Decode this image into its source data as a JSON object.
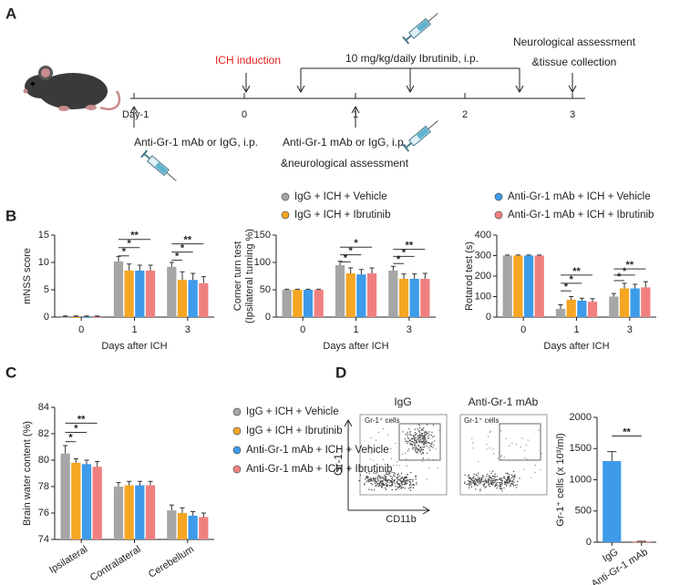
{
  "panels": [
    "A",
    "B",
    "C",
    "D"
  ],
  "timeline": {
    "days": [
      "Day-1",
      "0",
      "1",
      "2",
      "3"
    ],
    "ich": "ICH induction",
    "drug": "10 mg/kg/daily Ibrutinib, i.p.",
    "end": [
      "Neurological assessment",
      "&tissue collection"
    ],
    "first_injection": "Anti-Gr-1 mAb or IgG, i.p.",
    "second_injection": [
      "Anti-Gr-1 mAb or IgG, i.p.",
      "&neurological assessment"
    ]
  },
  "flow": {
    "titles": [
      "IgG",
      "Anti-Gr-1 mAb"
    ],
    "gate": "Gr-1⁺ cells",
    "ylabel": "Gr-1",
    "xlabel": "CD11b"
  },
  "chart_data": [
    {
      "type": "bar",
      "ylabel": "mNSS score",
      "xlabel": "Days after ICH",
      "categories": [
        "0",
        "1",
        "3"
      ],
      "ylim": [
        0,
        15
      ],
      "yticks": [
        0,
        5,
        10,
        15
      ],
      "series": [
        {
          "color": "#a6a6a6",
          "values": [
            0,
            10.2,
            9.2
          ],
          "errors": [
            0.2,
            0.9,
            0.8
          ]
        },
        {
          "color": "#f5a623",
          "values": [
            0,
            8.5,
            6.8
          ],
          "errors": [
            0.2,
            1.2,
            1.5
          ]
        },
        {
          "color": "#3d9be9",
          "values": [
            0,
            8.5,
            6.8
          ],
          "errors": [
            0.2,
            1.0,
            1.2
          ]
        },
        {
          "color": "#f08080",
          "values": [
            0,
            8.5,
            6.2
          ],
          "errors": [
            0.2,
            1.0,
            1.2
          ]
        }
      ],
      "annotations": [
        "**",
        "*",
        "*",
        "**",
        "*",
        "*"
      ]
    },
    {
      "type": "bar",
      "ylabel": [
        "Corner turn test",
        "(Ipsilateral turning %)"
      ],
      "xlabel": "Days after ICH",
      "categories": [
        "0",
        "1",
        "3"
      ],
      "ylim": [
        0,
        150
      ],
      "yticks": [
        0,
        50,
        100,
        150
      ],
      "series": [
        {
          "name": "IgG + ICH + Vehicle",
          "color": "#a6a6a6",
          "values": [
            50,
            95,
            85
          ],
          "errors": [
            1,
            7,
            8
          ]
        },
        {
          "name": "IgG + ICH + Ibrutinib",
          "color": "#f5a623",
          "values": [
            50,
            80,
            70
          ],
          "errors": [
            1,
            10,
            9
          ]
        },
        {
          "name": "Anti-Gr-1 mAb + ICH + Vehicle",
          "color": "#3d9be9",
          "values": [
            50,
            78,
            70
          ],
          "errors": [
            1,
            9,
            9
          ]
        },
        {
          "name": "Anti-Gr-1 mAb + ICH + Ibrutinib",
          "color": "#f08080",
          "values": [
            50,
            80,
            70
          ],
          "errors": [
            1,
            10,
            10
          ]
        }
      ],
      "annotations": [
        "*",
        "*",
        "*",
        "**",
        "*",
        "*"
      ]
    },
    {
      "type": "bar",
      "ylabel": "Rotarod test (s)",
      "xlabel": "Days after ICH",
      "categories": [
        "0",
        "1",
        "3"
      ],
      "ylim": [
        0,
        400
      ],
      "yticks": [
        0,
        100,
        200,
        300,
        400
      ],
      "series": [
        {
          "color": "#a6a6a6",
          "values": [
            300,
            40,
            100
          ],
          "errors": [
            3,
            20,
            15
          ]
        },
        {
          "color": "#f5a623",
          "values": [
            300,
            85,
            140
          ],
          "errors": [
            3,
            15,
            25
          ]
        },
        {
          "color": "#3d9be9",
          "values": [
            300,
            80,
            140
          ],
          "errors": [
            3,
            12,
            20
          ]
        },
        {
          "color": "#f08080",
          "values": [
            300,
            75,
            145
          ],
          "errors": [
            3,
            15,
            28
          ]
        }
      ],
      "annotations": [
        "**",
        "*",
        "*",
        "**",
        "*",
        "*"
      ]
    },
    {
      "type": "bar",
      "ylabel": "Brain water content (%)",
      "categories": [
        "Ipsilateral",
        "Contralateral",
        "Cerebellum"
      ],
      "ylim": [
        74,
        84
      ],
      "yticks": [
        74,
        76,
        78,
        80,
        82,
        84
      ],
      "series": [
        {
          "name": "IgG + ICH + Vehicle",
          "color": "#a6a6a6",
          "values": [
            80.5,
            78.0,
            76.2
          ],
          "errors": [
            0.6,
            0.3,
            0.4
          ]
        },
        {
          "name": "IgG + ICH + Ibrutinib",
          "color": "#f5a623",
          "values": [
            79.8,
            78.1,
            76.0
          ],
          "errors": [
            0.3,
            0.3,
            0.4
          ]
        },
        {
          "name": "Anti-Gr-1 mAb + ICH + Vehicle",
          "color": "#3d9be9",
          "values": [
            79.7,
            78.1,
            75.8
          ],
          "errors": [
            0.3,
            0.3,
            0.3
          ]
        },
        {
          "name": "Anti-Gr-1 mAb + ICH + Ibrutinib",
          "color": "#f08080",
          "values": [
            79.5,
            78.1,
            75.7
          ],
          "errors": [
            0.4,
            0.3,
            0.3
          ]
        }
      ],
      "annotations": [
        "**",
        "*",
        "*"
      ]
    },
    {
      "type": "bar",
      "ylabel": "Gr-1⁺ cells (x 10³/ml)",
      "categories": [
        "IgG",
        "Anti-Gr-1 mAb"
      ],
      "ylim": [
        0,
        2000
      ],
      "yticks": [
        0,
        500,
        1000,
        1500,
        2000
      ],
      "values": [
        1300,
        10
      ],
      "errors": [
        150,
        5
      ],
      "colors": [
        "#3d9be9",
        "#f08080"
      ],
      "annotations": [
        "**"
      ]
    }
  ]
}
